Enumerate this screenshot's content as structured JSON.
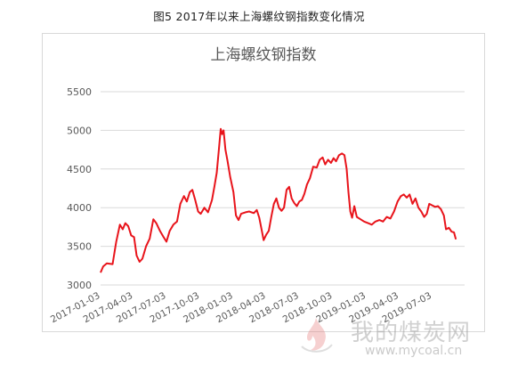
{
  "figure_caption": "图5  2017年以来上海螺纹钢指数变化情况",
  "watermark": {
    "text_cn": "我的煤炭网",
    "url": "www.mycoal.cn"
  },
  "colors": {
    "series": "#e8141b",
    "grid": "#d9d9d9",
    "tick": "#595959",
    "frame": "#d9d9d9"
  },
  "chart_data": {
    "type": "line",
    "title": "上海螺纹钢指数",
    "xlabel": "",
    "ylabel": "",
    "ylim": [
      3000,
      5500
    ],
    "yticks": [
      3000,
      3500,
      4000,
      4500,
      5000,
      5500
    ],
    "xlim": [
      "2017-01-03",
      "2019-09-30"
    ],
    "xticks": [
      "2017-01-03",
      "2017-04-03",
      "2017-07-03",
      "2017-10-03",
      "2018-01-03",
      "2018-04-03",
      "2018-07-03",
      "2018-10-03",
      "2019-01-03",
      "2019-04-03",
      "2019-07-03"
    ],
    "grid": true,
    "legend": "none",
    "series": [
      {
        "points": [
          [
            "2017-01-03",
            3160
          ],
          [
            "2017-01-10",
            3240
          ],
          [
            "2017-01-20",
            3280
          ],
          [
            "2017-02-05",
            3270
          ],
          [
            "2017-02-15",
            3560
          ],
          [
            "2017-02-25",
            3780
          ],
          [
            "2017-03-05",
            3720
          ],
          [
            "2017-03-12",
            3800
          ],
          [
            "2017-03-20",
            3760
          ],
          [
            "2017-03-28",
            3640
          ],
          [
            "2017-04-05",
            3620
          ],
          [
            "2017-04-12",
            3380
          ],
          [
            "2017-04-20",
            3300
          ],
          [
            "2017-04-28",
            3340
          ],
          [
            "2017-05-08",
            3500
          ],
          [
            "2017-05-18",
            3600
          ],
          [
            "2017-05-28",
            3850
          ],
          [
            "2017-06-05",
            3800
          ],
          [
            "2017-06-15",
            3700
          ],
          [
            "2017-06-25",
            3620
          ],
          [
            "2017-07-03",
            3560
          ],
          [
            "2017-07-12",
            3700
          ],
          [
            "2017-07-22",
            3780
          ],
          [
            "2017-08-01",
            3820
          ],
          [
            "2017-08-10",
            4050
          ],
          [
            "2017-08-20",
            4150
          ],
          [
            "2017-08-28",
            4080
          ],
          [
            "2017-09-05",
            4200
          ],
          [
            "2017-09-12",
            4230
          ],
          [
            "2017-09-20",
            4100
          ],
          [
            "2017-09-28",
            3950
          ],
          [
            "2017-10-05",
            3920
          ],
          [
            "2017-10-15",
            4000
          ],
          [
            "2017-10-25",
            3940
          ],
          [
            "2017-11-05",
            4100
          ],
          [
            "2017-11-12",
            4280
          ],
          [
            "2017-11-18",
            4450
          ],
          [
            "2017-11-24",
            4750
          ],
          [
            "2017-11-29",
            5020
          ],
          [
            "2017-12-03",
            4950
          ],
          [
            "2017-12-07",
            5000
          ],
          [
            "2017-12-12",
            4750
          ],
          [
            "2017-12-18",
            4600
          ],
          [
            "2017-12-25",
            4400
          ],
          [
            "2018-01-03",
            4200
          ],
          [
            "2018-01-10",
            3900
          ],
          [
            "2018-01-17",
            3840
          ],
          [
            "2018-01-24",
            3920
          ],
          [
            "2018-02-05",
            3940
          ],
          [
            "2018-02-15",
            3950
          ],
          [
            "2018-02-28",
            3930
          ],
          [
            "2018-03-08",
            3970
          ],
          [
            "2018-03-15",
            3870
          ],
          [
            "2018-03-22",
            3700
          ],
          [
            "2018-03-27",
            3580
          ],
          [
            "2018-04-03",
            3650
          ],
          [
            "2018-04-10",
            3700
          ],
          [
            "2018-04-17",
            3880
          ],
          [
            "2018-04-24",
            4050
          ],
          [
            "2018-05-01",
            4120
          ],
          [
            "2018-05-08",
            4000
          ],
          [
            "2018-05-15",
            3960
          ],
          [
            "2018-05-22",
            4000
          ],
          [
            "2018-05-29",
            4230
          ],
          [
            "2018-06-05",
            4270
          ],
          [
            "2018-06-12",
            4120
          ],
          [
            "2018-06-19",
            4060
          ],
          [
            "2018-06-26",
            4020
          ],
          [
            "2018-07-03",
            4080
          ],
          [
            "2018-07-10",
            4100
          ],
          [
            "2018-07-17",
            4180
          ],
          [
            "2018-07-24",
            4300
          ],
          [
            "2018-08-01",
            4380
          ],
          [
            "2018-08-10",
            4530
          ],
          [
            "2018-08-20",
            4520
          ],
          [
            "2018-08-28",
            4620
          ],
          [
            "2018-09-05",
            4650
          ],
          [
            "2018-09-12",
            4560
          ],
          [
            "2018-09-20",
            4620
          ],
          [
            "2018-09-28",
            4580
          ],
          [
            "2018-10-05",
            4640
          ],
          [
            "2018-10-12",
            4600
          ],
          [
            "2018-10-20",
            4680
          ],
          [
            "2018-10-28",
            4700
          ],
          [
            "2018-11-04",
            4680
          ],
          [
            "2018-11-10",
            4500
          ],
          [
            "2018-11-15",
            4200
          ],
          [
            "2018-11-20",
            3950
          ],
          [
            "2018-11-25",
            3870
          ],
          [
            "2018-12-01",
            4020
          ],
          [
            "2018-12-08",
            3880
          ],
          [
            "2018-12-18",
            3850
          ],
          [
            "2018-12-28",
            3820
          ],
          [
            "2019-01-08",
            3800
          ],
          [
            "2019-01-18",
            3780
          ],
          [
            "2019-01-28",
            3820
          ],
          [
            "2019-02-08",
            3840
          ],
          [
            "2019-02-18",
            3820
          ],
          [
            "2019-02-28",
            3880
          ],
          [
            "2019-03-10",
            3860
          ],
          [
            "2019-03-20",
            3950
          ],
          [
            "2019-03-30",
            4080
          ],
          [
            "2019-04-08",
            4150
          ],
          [
            "2019-04-16",
            4170
          ],
          [
            "2019-04-24",
            4130
          ],
          [
            "2019-05-02",
            4170
          ],
          [
            "2019-05-10",
            4050
          ],
          [
            "2019-05-18",
            4120
          ],
          [
            "2019-05-26",
            4000
          ],
          [
            "2019-06-03",
            3950
          ],
          [
            "2019-06-11",
            3880
          ],
          [
            "2019-06-18",
            3920
          ],
          [
            "2019-06-25",
            4050
          ],
          [
            "2019-07-03",
            4030
          ],
          [
            "2019-07-11",
            4010
          ],
          [
            "2019-07-19",
            4020
          ],
          [
            "2019-07-27",
            3980
          ],
          [
            "2019-08-04",
            3900
          ],
          [
            "2019-08-10",
            3720
          ],
          [
            "2019-08-18",
            3740
          ],
          [
            "2019-08-25",
            3690
          ],
          [
            "2019-09-01",
            3680
          ],
          [
            "2019-09-06",
            3590
          ]
        ]
      }
    ]
  }
}
